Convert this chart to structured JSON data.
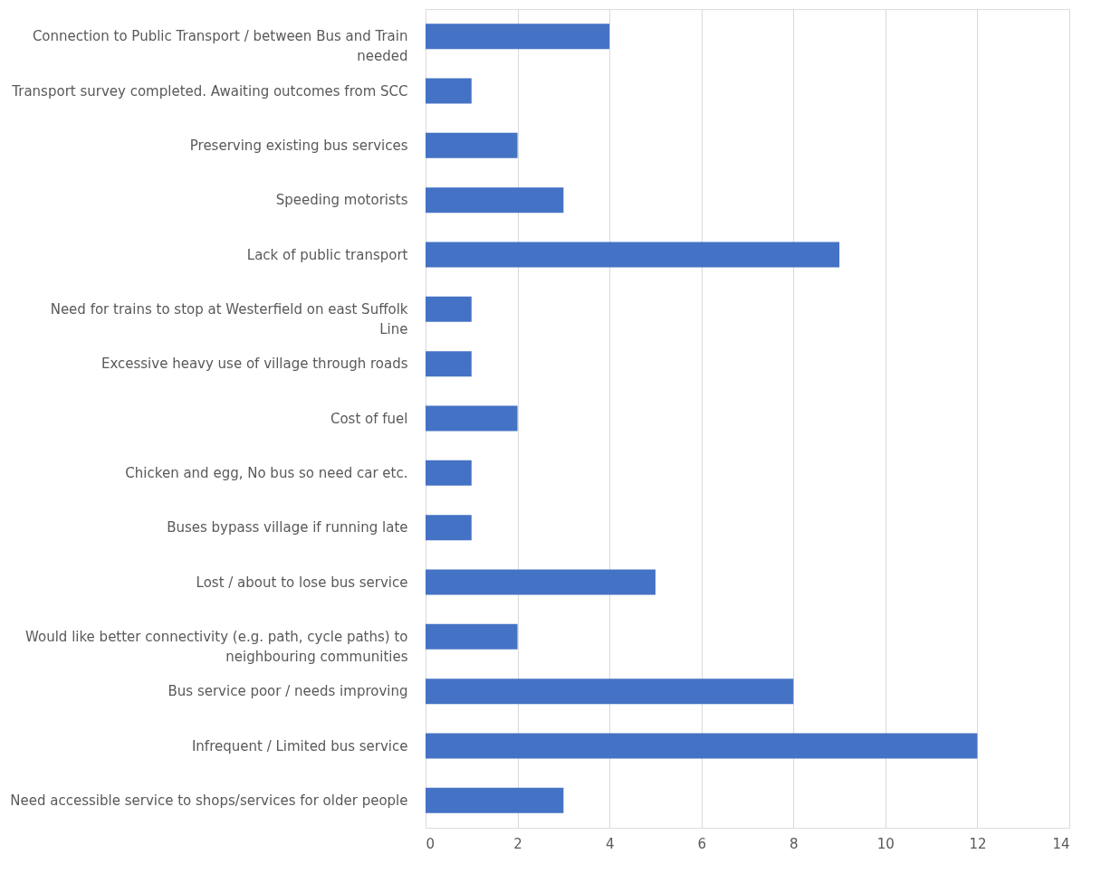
{
  "chart_data": {
    "type": "bar",
    "orientation": "horizontal",
    "categories": [
      "Connection to Public Transport / between Bus and Train needed",
      "Transport survey completed. Awaiting outcomes from SCC",
      "Preserving existing bus services",
      "Speeding motorists",
      "Lack of public transport",
      "Need for trains to stop at Westerfield on east Suffolk Line",
      "Excessive heavy use of village through roads",
      "Cost of fuel",
      "Chicken and egg, No bus so need car etc.",
      "Buses bypass village if running late",
      "Lost / about to lose bus service",
      "Would like better connectivity (e.g. path, cycle paths) to neighbouring communities",
      "Bus service poor / needs improving",
      "Infrequent  /  Limited bus service",
      "Need accessible service to shops/services for older people"
    ],
    "values": [
      4,
      1,
      2,
      3,
      9,
      1,
      1,
      2,
      1,
      1,
      5,
      2,
      8,
      12,
      3
    ],
    "color": "#4472c4",
    "xlim": [
      0,
      14
    ],
    "xticks": [
      0,
      2,
      4,
      6,
      8,
      10,
      12,
      14
    ],
    "grid": "x"
  }
}
